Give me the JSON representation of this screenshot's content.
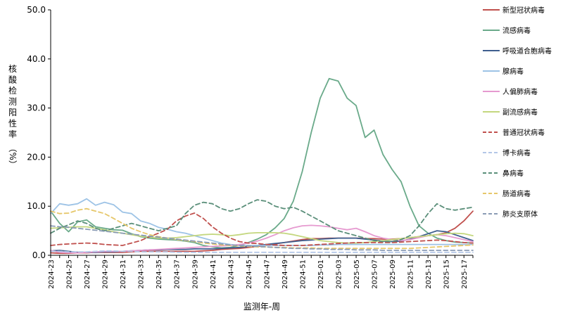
{
  "chart_data": {
    "type": "line",
    "ylabel_chars": [
      "核",
      "酸",
      "检",
      "测",
      "阳",
      "性",
      "率",
      "（%）"
    ],
    "xlabel": "监测年-周",
    "ylim": [
      0,
      50
    ],
    "y_ticks": [
      "0.0",
      "10.0",
      "20.0",
      "30.0",
      "40.0",
      "50.0"
    ],
    "y_tick_values": [
      0,
      10,
      20,
      30,
      40,
      50
    ],
    "categories": [
      "2024-23",
      "2024-24",
      "2024-25",
      "2024-26",
      "2024-27",
      "2024-28",
      "2024-29",
      "2024-30",
      "2024-31",
      "2024-32",
      "2024-33",
      "2024-34",
      "2024-35",
      "2024-36",
      "2024-37",
      "2024-38",
      "2024-39",
      "2024-40",
      "2024-41",
      "2024-42",
      "2024-43",
      "2024-44",
      "2024-45",
      "2024-46",
      "2024-47",
      "2024-48",
      "2024-49",
      "2024-50",
      "2024-51",
      "2024-52",
      "2025-01",
      "2025-02",
      "2025-03",
      "2025-04",
      "2025-05",
      "2025-06",
      "2025-07",
      "2025-08",
      "2025-09",
      "2025-10",
      "2025-11",
      "2025-12",
      "2025-13",
      "2025-14",
      "2025-15",
      "2025-16",
      "2025-17",
      "2025-18"
    ],
    "x_tick_labels": [
      "2024-23",
      "2024-25",
      "2024-27",
      "2024-29",
      "2024-31",
      "2024-33",
      "2024-35",
      "2024-37",
      "2024-39",
      "2024-41",
      "2024-43",
      "2024-45",
      "2024-47",
      "2024-49",
      "2024-51",
      "2025-01",
      "2025-03",
      "2025-05",
      "2025-07",
      "2025-09",
      "2025-11",
      "2025-13",
      "2025-15",
      "2025-17"
    ],
    "grid": false,
    "legend_position": "right",
    "series": [
      {
        "name": "新型冠状病毒",
        "color": "#c0504d",
        "dash": "solid",
        "values": [
          0.5,
          0.4,
          0.4,
          0.5,
          0.5,
          0.6,
          0.6,
          0.6,
          0.6,
          0.7,
          0.8,
          0.8,
          0.8,
          0.8,
          0.8,
          0.8,
          0.8,
          0.9,
          1.0,
          1.2,
          1.3,
          1.4,
          1.6,
          1.8,
          2.0,
          2.3,
          2.6,
          2.9,
          3.2,
          3.4,
          3.4,
          3.5,
          3.5,
          3.5,
          3.5,
          3.4,
          3.4,
          3.3,
          3.3,
          3.4,
          3.6,
          3.8,
          4.0,
          4.2,
          4.6,
          5.5,
          7.0,
          9.0
        ]
      },
      {
        "name": "流感病毒",
        "color": "#6aaa8a",
        "dash": "solid",
        "values": [
          9.0,
          6.5,
          4.8,
          6.8,
          7.2,
          5.8,
          5.5,
          5.2,
          5.1,
          4.4,
          3.8,
          3.5,
          3.3,
          3.2,
          3.1,
          2.9,
          2.6,
          2.0,
          1.7,
          1.5,
          1.6,
          2.0,
          2.6,
          3.3,
          4.2,
          5.6,
          7.5,
          11.0,
          17.0,
          25.0,
          32.0,
          36.0,
          35.5,
          32.0,
          30.5,
          24.0,
          25.5,
          20.5,
          17.5,
          15.0,
          10.0,
          6.0,
          4.5,
          3.5,
          3.0,
          2.7,
          2.6,
          2.5
        ]
      },
      {
        "name": "呼吸道合胞病毒",
        "color": "#3f5f8f",
        "dash": "solid",
        "values": [
          0.9,
          1.0,
          0.8,
          0.6,
          0.6,
          0.6,
          0.7,
          0.7,
          0.8,
          0.9,
          1.0,
          1.1,
          1.1,
          1.2,
          1.2,
          1.2,
          1.3,
          1.3,
          1.3,
          1.4,
          1.5,
          1.6,
          1.8,
          2.0,
          2.2,
          2.4,
          2.6,
          2.8,
          3.0,
          3.1,
          3.3,
          3.4,
          3.5,
          3.5,
          3.5,
          3.3,
          3.1,
          2.9,
          2.8,
          2.9,
          3.3,
          3.8,
          4.4,
          5.0,
          4.8,
          4.2,
          3.6,
          3.0
        ]
      },
      {
        "name": "腺病毒",
        "color": "#9dc3e6",
        "dash": "solid",
        "values": [
          8.5,
          10.5,
          10.2,
          10.5,
          11.5,
          10.2,
          10.8,
          10.3,
          8.8,
          8.5,
          7.0,
          6.5,
          5.7,
          5.3,
          4.8,
          4.5,
          4.0,
          3.5,
          3.0,
          2.5,
          2.2,
          2.0,
          2.0,
          2.0,
          2.0,
          2.0,
          2.0,
          2.0,
          2.0,
          2.0,
          2.1,
          2.1,
          2.2,
          2.2,
          2.2,
          2.2,
          2.2,
          2.2,
          2.2,
          2.2,
          2.2,
          2.2,
          2.2,
          2.2,
          2.2,
          2.2,
          2.2,
          2.2
        ]
      },
      {
        "name": "人偏肺病毒",
        "color": "#e69ad0",
        "dash": "solid",
        "values": [
          1.0,
          0.6,
          0.5,
          0.5,
          0.6,
          0.7,
          0.8,
          0.8,
          0.8,
          0.9,
          1.0,
          1.1,
          1.2,
          1.3,
          1.4,
          1.5,
          1.6,
          1.7,
          1.8,
          1.9,
          2.0,
          2.2,
          2.5,
          2.9,
          3.5,
          4.2,
          5.0,
          5.6,
          6.0,
          6.1,
          6.0,
          5.8,
          5.5,
          5.2,
          5.5,
          4.8,
          4.0,
          3.5,
          3.2,
          3.0,
          3.2,
          3.6,
          4.0,
          4.2,
          4.0,
          3.6,
          3.2,
          2.8
        ]
      },
      {
        "name": "副流感病毒",
        "color": "#c4d77e",
        "dash": "solid",
        "values": [
          5.5,
          5.6,
          5.7,
          5.8,
          5.8,
          5.5,
          5.2,
          4.8,
          4.5,
          4.2,
          3.9,
          3.7,
          3.5,
          3.5,
          3.6,
          3.8,
          4.0,
          4.2,
          4.3,
          4.2,
          4.0,
          4.2,
          4.5,
          4.6,
          4.6,
          4.6,
          4.5,
          4.2,
          3.8,
          3.4,
          3.0,
          2.8,
          2.6,
          2.5,
          2.5,
          2.6,
          2.8,
          3.0,
          3.2,
          3.4,
          3.6,
          3.8,
          4.0,
          4.2,
          4.4,
          4.5,
          4.4,
          4.0
        ]
      },
      {
        "name": "普通冠状病毒",
        "color": "#c0504d",
        "dash": "dashed",
        "values": [
          2.0,
          2.2,
          2.3,
          2.4,
          2.5,
          2.4,
          2.2,
          2.1,
          2.0,
          2.5,
          3.0,
          3.8,
          4.5,
          5.3,
          7.0,
          8.0,
          8.6,
          7.5,
          5.8,
          4.5,
          3.5,
          2.8,
          2.5,
          2.4,
          2.2,
          2.1,
          2.0,
          2.0,
          2.0,
          2.1,
          2.2,
          2.3,
          2.4,
          2.5,
          2.6,
          2.6,
          2.6,
          2.6,
          2.6,
          2.7,
          2.8,
          2.9,
          3.0,
          3.1,
          3.0,
          2.8,
          2.6,
          2.5
        ]
      },
      {
        "name": "博卡病毒",
        "color": "#b4c7e7",
        "dash": "dashed",
        "values": [
          0.8,
          0.8,
          0.7,
          0.7,
          0.7,
          0.8,
          0.9,
          0.9,
          0.8,
          0.8,
          0.7,
          0.7,
          0.7,
          0.7,
          0.6,
          0.6,
          0.6,
          0.6,
          0.6,
          0.6,
          0.6,
          0.6,
          0.6,
          0.6,
          0.6,
          0.6,
          0.6,
          0.6,
          0.6,
          0.6,
          0.6,
          0.6,
          0.6,
          0.6,
          0.6,
          0.6,
          0.6,
          0.6,
          0.6,
          0.6,
          0.6,
          0.6,
          0.6,
          0.6,
          0.6,
          0.6,
          0.6,
          0.6
        ]
      },
      {
        "name": "鼻病毒",
        "color": "#5b8f7a",
        "dash": "dashed",
        "values": [
          4.5,
          5.5,
          6.2,
          7.0,
          6.5,
          5.5,
          5.0,
          5.5,
          6.0,
          6.5,
          6.0,
          5.5,
          5.0,
          5.5,
          6.0,
          8.5,
          10.2,
          10.8,
          10.5,
          9.5,
          9.0,
          9.5,
          10.5,
          11.3,
          11.0,
          10.0,
          9.5,
          9.8,
          9.0,
          8.0,
          7.0,
          6.0,
          5.0,
          4.5,
          4.0,
          3.5,
          3.0,
          2.8,
          2.8,
          3.2,
          4.0,
          6.0,
          8.5,
          10.5,
          9.5,
          9.2,
          9.5,
          9.8
        ]
      },
      {
        "name": "肠道病毒",
        "color": "#e6c76a",
        "dash": "dashed",
        "values": [
          9.0,
          8.5,
          8.6,
          9.2,
          9.5,
          9.0,
          8.5,
          7.5,
          6.5,
          5.5,
          4.8,
          4.2,
          3.8,
          3.5,
          3.2,
          3.0,
          2.8,
          2.5,
          2.3,
          2.1,
          2.0,
          1.9,
          1.8,
          1.7,
          1.7,
          1.6,
          1.6,
          1.5,
          1.5,
          1.5,
          1.4,
          1.4,
          1.4,
          1.4,
          1.4,
          1.4,
          1.4,
          1.4,
          1.4,
          1.4,
          1.4,
          1.5,
          1.6,
          1.7,
          1.8,
          1.9,
          2.0,
          2.1
        ]
      },
      {
        "name": "肺炎支原体",
        "color": "#8a9bb5",
        "dash": "dashed",
        "values": [
          6.0,
          5.8,
          5.7,
          5.5,
          5.3,
          5.1,
          4.9,
          4.7,
          4.5,
          4.3,
          4.1,
          3.9,
          3.7,
          3.5,
          3.3,
          3.1,
          2.9,
          2.7,
          2.5,
          2.3,
          2.1,
          2.0,
          1.9,
          1.8,
          1.7,
          1.6,
          1.5,
          1.4,
          1.4,
          1.3,
          1.3,
          1.2,
          1.2,
          1.2,
          1.1,
          1.1,
          1.1,
          1.0,
          1.0,
          1.0,
          1.0,
          1.0,
          1.0,
          1.0,
          1.0,
          1.0,
          1.0,
          1.0
        ]
      }
    ]
  }
}
